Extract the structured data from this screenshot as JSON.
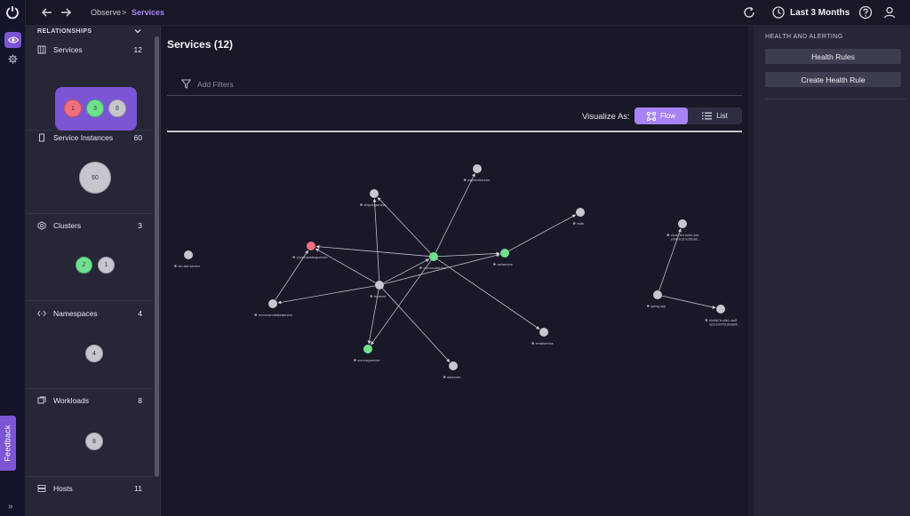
{
  "header": {
    "breadcrumb": {
      "parent": "Observe",
      "separator": ">",
      "current": "Services"
    },
    "time_range": "Last 3 Months",
    "icons": [
      "back-arrow-icon",
      "forward-arrow-icon",
      "refresh-icon",
      "clock-icon",
      "help-icon",
      "user-icon"
    ]
  },
  "rail": {
    "feedback_label": "Feedback",
    "expand_glyph": "»",
    "accent": "#7b55d4"
  },
  "relationships": {
    "title": "RELATIONSHIPS",
    "sections": [
      {
        "name": "Services",
        "count": "12",
        "bubbles": [
          {
            "label": "1",
            "status": "red"
          },
          {
            "label": "3",
            "status": "green"
          },
          {
            "label": "8",
            "status": "gray"
          }
        ]
      },
      {
        "name": "Service Instances",
        "count": "60",
        "bubbles": [
          {
            "label": "60",
            "status": "gray"
          }
        ]
      },
      {
        "name": "Clusters",
        "count": "3",
        "bubbles": [
          {
            "label": "2",
            "status": "green"
          },
          {
            "label": "1",
            "status": "gray"
          }
        ]
      },
      {
        "name": "Namespaces",
        "count": "4",
        "bubbles": [
          {
            "label": "4",
            "status": "gray"
          }
        ]
      },
      {
        "name": "Workloads",
        "count": "8",
        "bubbles": [
          {
            "label": "8",
            "status": "gray"
          }
        ]
      },
      {
        "name": "Hosts",
        "count": "11",
        "bubbles": []
      }
    ]
  },
  "main": {
    "title": "Services (12)",
    "filter_placeholder": "Add Filters",
    "visualize_label": "Visualize As:",
    "flow_label": "Flow",
    "list_label": "List"
  },
  "graph": {
    "colors": {
      "healthy": "#6fe08f",
      "critical": "#f0707f",
      "unknown": "#c6c6ce"
    },
    "nodes": [
      {
        "id": "paymentservice",
        "label": "paymentservice",
        "status": "unknown"
      },
      {
        "id": "shippingservice",
        "label": "shippingservice",
        "status": "unknown"
      },
      {
        "id": "redis",
        "label": "redis",
        "status": "unknown"
      },
      {
        "id": "productcatalogservice",
        "label": "productcatalogservice",
        "status": "critical"
      },
      {
        "id": "checkoutservice",
        "label": "checkoutservice",
        "status": "healthy"
      },
      {
        "id": "cartservice",
        "label": "cartservice",
        "status": "healthy"
      },
      {
        "id": "frontend",
        "label": "frontend",
        "status": "unknown"
      },
      {
        "id": "recommendationservice",
        "label": "recommendationservice",
        "status": "unknown"
      },
      {
        "id": "emailservice",
        "label": "emailservice",
        "status": "unknown"
      },
      {
        "id": "currencyservice",
        "label": "currencyservice",
        "status": "healthy"
      },
      {
        "id": "adservice",
        "label": "adservice",
        "status": "unknown"
      },
      {
        "id": "dm-test-service",
        "label": "dm-test-service",
        "status": "unknown"
      },
      {
        "id": "hash-top",
        "label": "c1a47fbd-bab4-4dd",
        "label2": "e096-b1b7e2f5185...",
        "status": "unknown"
      },
      {
        "id": "spring-app",
        "label": "spring-app",
        "status": "unknown"
      },
      {
        "id": "hash-bottom",
        "label": "b0d5b7b-c8b1-4a4f",
        "label2": "a22c1b07613bdab6...",
        "status": "unknown"
      }
    ],
    "edges": [
      [
        "checkoutservice",
        "paymentservice"
      ],
      [
        "checkoutservice",
        "shippingservice"
      ],
      [
        "checkoutservice",
        "emailservice"
      ],
      [
        "checkoutservice",
        "cartservice"
      ],
      [
        "checkoutservice",
        "productcatalogservice"
      ],
      [
        "checkoutservice",
        "currencyservice"
      ],
      [
        "frontend",
        "checkoutservice"
      ],
      [
        "frontend",
        "productcatalogservice"
      ],
      [
        "frontend",
        "recommendationservice"
      ],
      [
        "frontend",
        "cartservice"
      ],
      [
        "frontend",
        "currencyservice"
      ],
      [
        "frontend",
        "adservice"
      ],
      [
        "frontend",
        "shippingservice"
      ],
      [
        "cartservice",
        "redis"
      ],
      [
        "recommendationservice",
        "productcatalogservice"
      ],
      [
        "spring-app",
        "hash-top"
      ],
      [
        "spring-app",
        "hash-bottom"
      ]
    ]
  },
  "health": {
    "title": "HEALTH AND ALERTING",
    "rules_button": "Health Rules",
    "create_button": "Create Health Rule"
  }
}
